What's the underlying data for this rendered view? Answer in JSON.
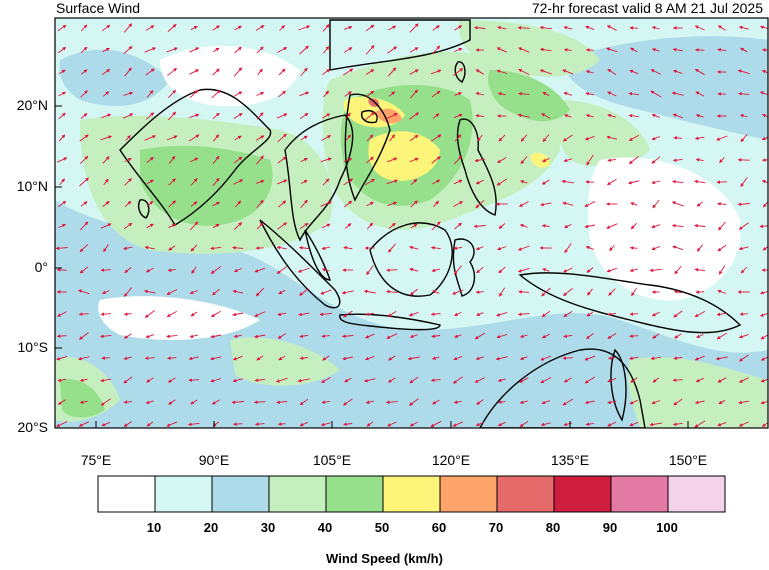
{
  "header": {
    "title": "Surface Wind",
    "subtitle": "72-hr forecast valid 8 AM 21 Jul 2025"
  },
  "map": {
    "lat_labels": [
      "20°N",
      "10°N",
      "0°",
      "10°S",
      "20°S"
    ],
    "lon_labels": [
      "75°E",
      "90°E",
      "105°E",
      "120°E",
      "135°E",
      "150°E"
    ],
    "lat_range": [
      -20,
      30
    ],
    "lon_range": [
      70,
      160
    ],
    "arrow_color": "#e0143c",
    "land_outline_color": "#000000"
  },
  "colorbar": {
    "title": "Wind Speed (km/h)",
    "tick_labels": [
      "10",
      "20",
      "30",
      "40",
      "50",
      "60",
      "70",
      "80",
      "90",
      "100"
    ],
    "colors": [
      "#ffffff",
      "#d4f7f3",
      "#aedbea",
      "#c6efbf",
      "#96e08c",
      "#fdf57a",
      "#fca46a",
      "#e66a6a",
      "#cf1d40",
      "#e27aa4",
      "#f4d2ea"
    ]
  }
}
